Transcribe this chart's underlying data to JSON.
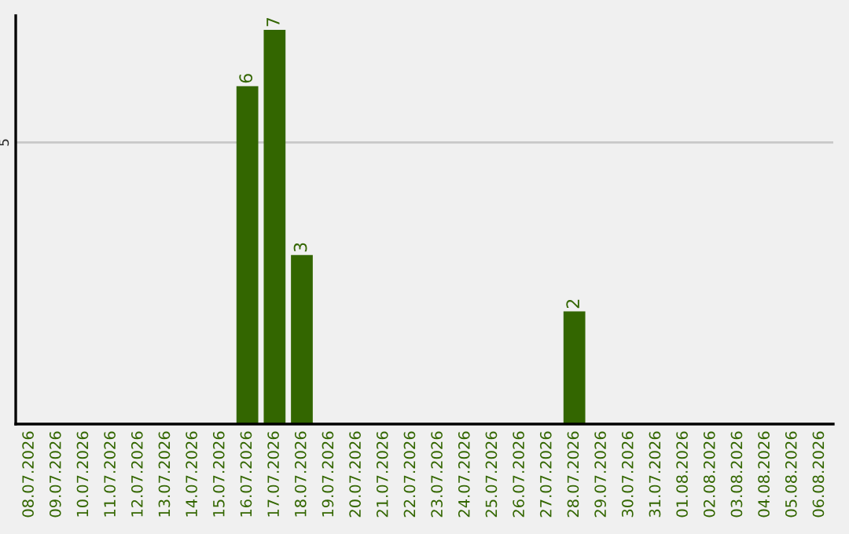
{
  "chart_data": {
    "type": "bar",
    "categories": [
      "08.07.2026",
      "09.07.2026",
      "10.07.2026",
      "11.07.2026",
      "12.07.2026",
      "13.07.2026",
      "14.07.2026",
      "15.07.2026",
      "16.07.2026",
      "17.07.2026",
      "18.07.2026",
      "19.07.2026",
      "20.07.2026",
      "21.07.2026",
      "22.07.2026",
      "23.07.2026",
      "24.07.2026",
      "25.07.2026",
      "26.07.2026",
      "27.07.2026",
      "28.07.2026",
      "29.07.2026",
      "30.07.2026",
      "31.07.2026",
      "01.08.2026",
      "02.08.2026",
      "03.08.2026",
      "04.08.2026",
      "05.08.2026",
      "06.08.2026"
    ],
    "values": [
      0,
      0,
      0,
      0,
      0,
      0,
      0,
      0,
      6,
      7,
      3,
      0,
      0,
      0,
      0,
      0,
      0,
      0,
      0,
      0,
      2,
      0,
      0,
      0,
      0,
      0,
      0,
      0,
      0,
      0
    ],
    "value_labels": [
      null,
      null,
      null,
      null,
      null,
      null,
      null,
      null,
      "6",
      "7",
      "3",
      null,
      null,
      null,
      null,
      null,
      null,
      null,
      null,
      null,
      "2",
      null,
      null,
      null,
      null,
      null,
      null,
      null,
      null,
      null
    ],
    "color": "#336600",
    "ylim": [
      0,
      7.25
    ],
    "yticks": [
      5
    ],
    "grid": "y",
    "legend": false
  }
}
